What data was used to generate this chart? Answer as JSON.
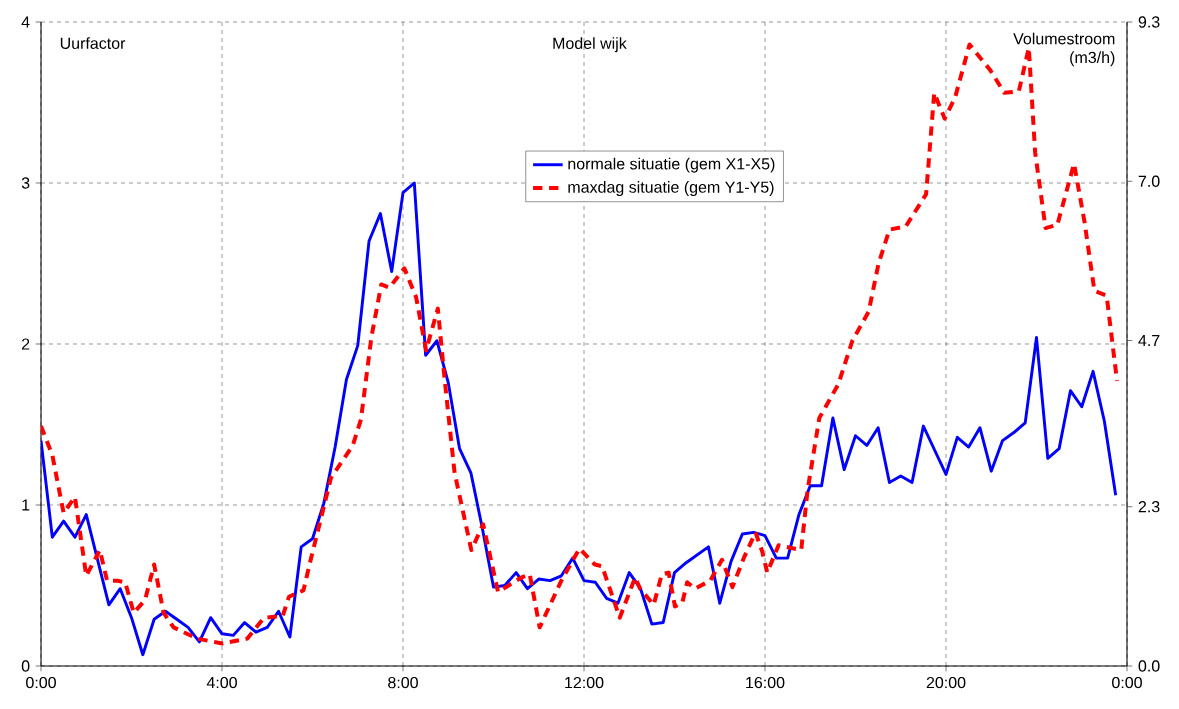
{
  "chart_data": {
    "type": "line",
    "title": "Model wijk",
    "ylabel": "Uurfactor",
    "y2label": "Volumestroom (m3/h)",
    "xlim": [
      0,
      24
    ],
    "xticks": [
      {
        "value": 0,
        "label": "0:00"
      },
      {
        "value": 4,
        "label": "4:00"
      },
      {
        "value": 8,
        "label": "8:00"
      },
      {
        "value": 12,
        "label": "12:00"
      },
      {
        "value": 16,
        "label": "16:00"
      },
      {
        "value": 20,
        "label": "20:00"
      },
      {
        "value": 24,
        "label": "0:00"
      }
    ],
    "ylim": [
      0,
      4
    ],
    "yticks": [
      0,
      1,
      2,
      3,
      4
    ],
    "y2lim": [
      0,
      9.3
    ],
    "y2ticks": [
      {
        "value": 0,
        "label": "0.0"
      },
      2.3,
      4.7,
      {
        "value": 7,
        "label": "7.0"
      },
      9.3
    ],
    "grid": true,
    "legend": "top",
    "marker": "none",
    "series": [
      {
        "name": "normale situatie (gem X1-X5)",
        "color": "#0000ff",
        "line_style": "solid",
        "x": [
          0,
          0.25,
          0.5,
          0.75,
          1,
          1.25,
          1.5,
          1.75,
          2,
          2.25,
          2.5,
          2.75,
          3,
          3.25,
          3.5,
          3.75,
          4,
          4.25,
          4.5,
          4.75,
          5,
          5.25,
          5.5,
          5.75,
          6,
          6.25,
          6.5,
          6.75,
          7,
          7.25,
          7.5,
          7.75,
          8,
          8.25,
          8.5,
          8.75,
          9,
          9.25,
          9.5,
          9.75,
          10,
          10.25,
          10.5,
          10.75,
          11,
          11.25,
          11.5,
          11.75,
          12,
          12.25,
          12.5,
          12.75,
          13,
          13.25,
          13.5,
          13.75,
          14,
          14.25,
          14.5,
          14.75,
          15,
          15.25,
          15.5,
          15.75,
          16,
          16.25,
          16.5,
          16.75,
          17,
          17.25,
          17.5,
          17.75,
          18,
          18.25,
          18.5,
          18.75,
          19,
          19.25,
          19.5,
          19.75,
          20,
          20.25,
          20.5,
          20.75,
          21,
          21.25,
          21.5,
          21.75,
          22,
          22.25,
          22.5,
          22.75,
          23,
          23.25,
          23.5,
          23.75
        ],
        "values": [
          1.4,
          0.8,
          0.9,
          0.8,
          0.94,
          0.66,
          0.38,
          0.48,
          0.3,
          0.07,
          0.29,
          0.34,
          0.29,
          0.24,
          0.15,
          0.3,
          0.2,
          0.19,
          0.27,
          0.21,
          0.24,
          0.34,
          0.18,
          0.74,
          0.79,
          1.01,
          1.36,
          1.78,
          1.99,
          2.64,
          2.81,
          2.45,
          2.94,
          3.0,
          1.93,
          2.02,
          1.76,
          1.35,
          1.2,
          0.86,
          0.49,
          0.5,
          0.58,
          0.48,
          0.54,
          0.53,
          0.56,
          0.67,
          0.53,
          0.52,
          0.42,
          0.39,
          0.58,
          0.48,
          0.26,
          0.27,
          0.58,
          0.64,
          0.69,
          0.74,
          0.39,
          0.65,
          0.82,
          0.83,
          0.81,
          0.67,
          0.67,
          0.94,
          1.12,
          1.12,
          1.54,
          1.22,
          1.43,
          1.37,
          1.48,
          1.14,
          1.18,
          1.14,
          1.49,
          1.34,
          1.19,
          1.42,
          1.36,
          1.48,
          1.21,
          1.4,
          1.45,
          1.51,
          2.04,
          1.29,
          1.35,
          1.71,
          1.61,
          1.83,
          1.52,
          1.06
        ]
      },
      {
        "name": "maxdag situatie (gem Y1-Y5)",
        "color": "#ff0000",
        "line_style": "dashed",
        "x": [
          0,
          0.25,
          0.5,
          0.75,
          1.0,
          1.3,
          1.46,
          1.68,
          1.86,
          2.05,
          2.3,
          2.5,
          2.71,
          2.93,
          3.45,
          4.0,
          4.56,
          4.93,
          5.34,
          5.48,
          5.8,
          5.96,
          6.41,
          6.89,
          7.07,
          7.3,
          7.52,
          7.7,
          8.03,
          8.29,
          8.51,
          8.77,
          8.92,
          9.14,
          9.51,
          9.77,
          10.1,
          10.62,
          10.8,
          11.02,
          11.5,
          11.9,
          12.24,
          12.4,
          12.79,
          13.13,
          13.24,
          13.54,
          13.72,
          13.87,
          14.01,
          14.17,
          14.28,
          14.45,
          14.79,
          15.05,
          15.28,
          15.53,
          15.79,
          15.94,
          16.05,
          16.3,
          16.8,
          16.94,
          17.2,
          17.62,
          17.93,
          18.29,
          18.51,
          18.75,
          19.11,
          19.56,
          19.74,
          19.97,
          20.2,
          20.52,
          20.98,
          21.29,
          21.61,
          21.83,
          21.97,
          22.2,
          22.46,
          22.83,
          23.06,
          23.28,
          23.55,
          23.78
        ],
        "values": [
          1.49,
          1.31,
          0.95,
          1.05,
          0.56,
          0.72,
          0.53,
          0.53,
          0.52,
          0.33,
          0.41,
          0.63,
          0.33,
          0.24,
          0.17,
          0.14,
          0.17,
          0.3,
          0.31,
          0.43,
          0.47,
          0.66,
          1.17,
          1.37,
          1.53,
          2.04,
          2.37,
          2.35,
          2.47,
          2.29,
          1.96,
          2.22,
          1.78,
          1.2,
          0.72,
          0.88,
          0.46,
          0.55,
          0.57,
          0.24,
          0.53,
          0.73,
          0.63,
          0.62,
          0.3,
          0.55,
          0.48,
          0.38,
          0.57,
          0.58,
          0.37,
          0.39,
          0.52,
          0.48,
          0.53,
          0.66,
          0.49,
          0.67,
          0.83,
          0.71,
          0.58,
          0.75,
          0.72,
          1.09,
          1.54,
          1.75,
          2.02,
          2.2,
          2.5,
          2.71,
          2.73,
          2.93,
          3.56,
          3.4,
          3.53,
          3.86,
          3.7,
          3.56,
          3.57,
          3.84,
          3.19,
          2.72,
          2.74,
          3.12,
          2.76,
          2.33,
          2.3,
          1.77
        ]
      }
    ]
  }
}
